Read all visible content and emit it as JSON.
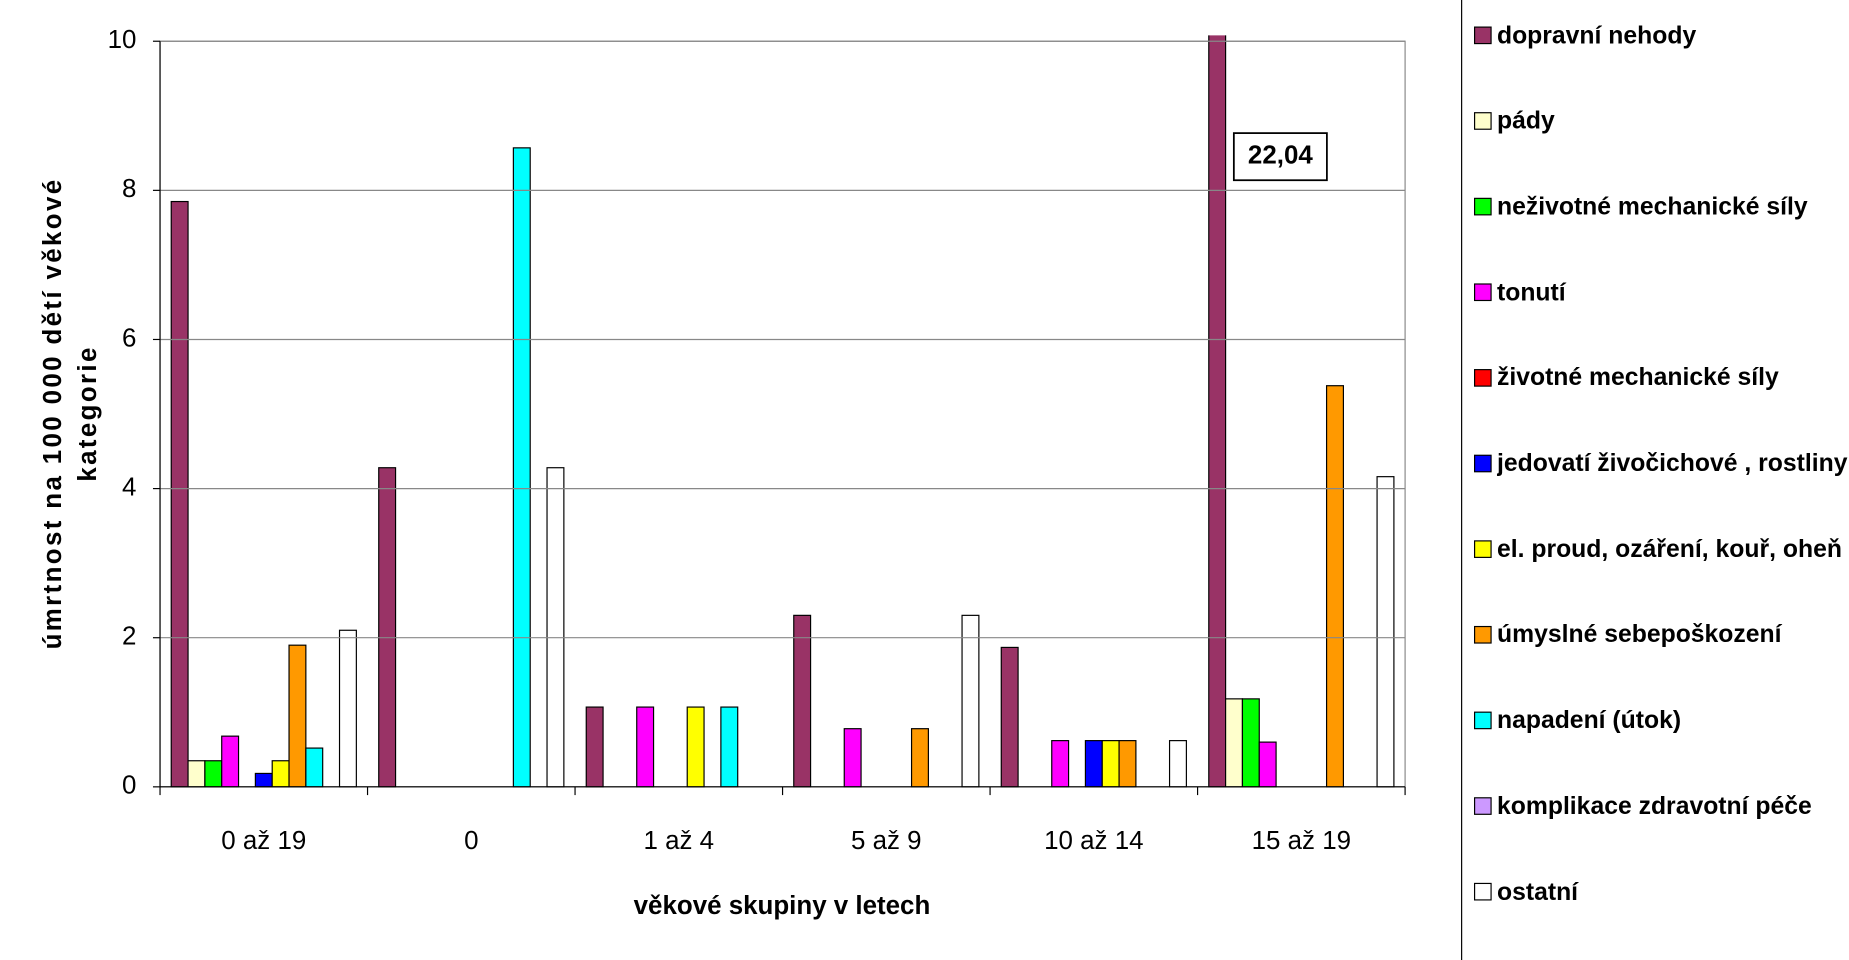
{
  "chart_data": {
    "type": "bar",
    "xlabel": "věkové skupiny v letech",
    "ylabel": [
      "úmrtnost na 100 000 dětí věkové",
      "kategorie"
    ],
    "categories": [
      "0 až 19",
      "0",
      "1 až 4",
      "5 až 9",
      "10 až 14",
      "15 až 19"
    ],
    "ylim": [
      0,
      10
    ],
    "yticks": [
      0,
      2,
      4,
      6,
      8,
      10
    ],
    "grid": true,
    "legend": "right",
    "series": [
      {
        "name": "dopravní nehody",
        "color": "#993366",
        "values": [
          7.85,
          4.28,
          1.07,
          2.3,
          1.87,
          22.04
        ],
        "value_labels": [
          null,
          null,
          null,
          null,
          null,
          "22,04"
        ]
      },
      {
        "name": "pády",
        "color": "#FFFFCC",
        "values": [
          0.35,
          0,
          0,
          0,
          0,
          1.18
        ]
      },
      {
        "name": "neživotné mechanické síly",
        "color": "#00FF00",
        "values": [
          0.35,
          0,
          0,
          0,
          0,
          1.18
        ]
      },
      {
        "name": "tonutí",
        "color": "#FF00FF",
        "values": [
          0.68,
          0,
          1.07,
          0.78,
          0.62,
          0.6
        ]
      },
      {
        "name": "životné mechanické síly",
        "color": "#FF0000",
        "values": [
          0,
          0,
          0,
          0,
          0,
          0
        ]
      },
      {
        "name": "jedovatí živočichové , rostliny",
        "color": "#0000FF",
        "values": [
          0.18,
          0,
          0,
          0,
          0.62,
          0
        ]
      },
      {
        "name": "el. proud, ozáření, kouř, oheň",
        "color": "#FFFF00",
        "values": [
          0.35,
          0,
          1.07,
          0,
          0.62,
          0
        ]
      },
      {
        "name": "úmyslné sebepoškození",
        "color": "#FF9900",
        "values": [
          1.9,
          0,
          0,
          0.78,
          0.62,
          5.38
        ]
      },
      {
        "name": "napadení (útok)",
        "color": "#00FFFF",
        "values": [
          0.52,
          8.57,
          1.07,
          0,
          0,
          0
        ]
      },
      {
        "name": "komplikace zdravotní péče",
        "color": "#CC99FF",
        "values": [
          0,
          0,
          0,
          0,
          0,
          0
        ]
      },
      {
        "name": "ostatní",
        "color": "#FFFFFF",
        "values": [
          2.1,
          4.28,
          0,
          2.3,
          0.62,
          4.16
        ]
      }
    ]
  }
}
